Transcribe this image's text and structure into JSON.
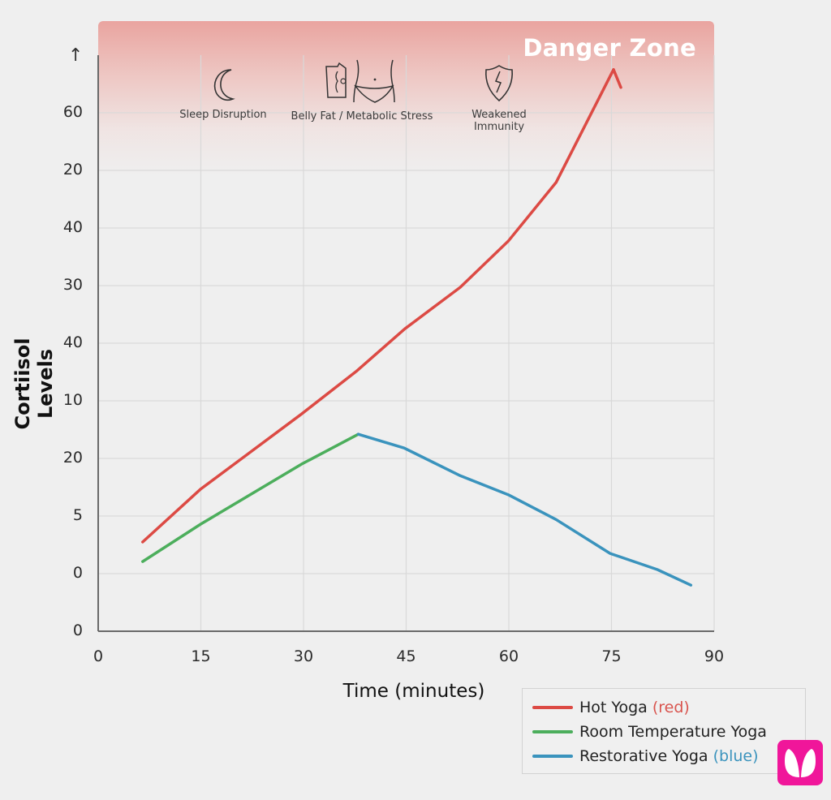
{
  "chart_data": {
    "type": "line",
    "title": "",
    "xlabel": "Time (minutes)",
    "ylabel": "Cortiisol Levels",
    "xlim": [
      0,
      90
    ],
    "x_ticks": [
      "0",
      "15",
      "30",
      "45",
      "60",
      "75",
      "90"
    ],
    "y_ticks_top_to_bottom": [
      "↑",
      "60",
      "20",
      "40",
      "30",
      "40",
      "10",
      "20",
      "5",
      "0",
      "0"
    ],
    "y_axis_note": "Y tick labels are non-monotonic as rendered; values below are expressed in grid-row units where 0 = bottom axis and 10 = top gridline (arrow)",
    "grid": true,
    "legend_position": "bottom-right",
    "series": [
      {
        "name": "Hot Yoga (red)",
        "color": "#dc4a44",
        "x": [
          6.5,
          15,
          21.8,
          29.7,
          37.7,
          44.8,
          52.9,
          59.9,
          66.9,
          75.3
        ],
        "y_grid_units": [
          1.55,
          2.47,
          3.07,
          3.77,
          4.51,
          5.25,
          5.97,
          6.77,
          7.79,
          9.75
        ],
        "arrow_tip": true
      },
      {
        "name": "Room Temperature Yoga",
        "color": "#4cae5c",
        "x": [
          6.5,
          15,
          29.7,
          38
        ],
        "y_grid_units": [
          1.21,
          1.86,
          2.9,
          3.42
        ]
      },
      {
        "name": "Restorative Yoga (blue)",
        "color": "#3a93bd",
        "x": [
          38,
          44.7,
          52.9,
          59.9,
          66.9,
          74.8,
          81.7,
          86.6
        ],
        "y_grid_units": [
          3.42,
          3.18,
          2.7,
          2.37,
          1.94,
          1.35,
          1.07,
          0.8
        ]
      }
    ],
    "annotations": [
      {
        "text": "Danger Zone",
        "position": "top-right band"
      },
      {
        "text": "Sleep Disruption",
        "icon": "moon-icon"
      },
      {
        "text": "Belly Fat / Metabolic Stress",
        "icon": "belly-icon"
      },
      {
        "text": "Weakened Immunity",
        "icon": "shield-bolt-icon"
      }
    ]
  },
  "labels": {
    "danger_zone": "Danger Zone",
    "y_arrow": "↑",
    "ylabel": "Cortiisol Levels",
    "xlabel": "Time (minutes)",
    "annot_sleep": "Sleep Disruption",
    "annot_belly": "Belly Fat / Metabolic Stress",
    "annot_immunity": "Weakened Immunity"
  },
  "legend": {
    "items": [
      {
        "label": "Hot Yoga ",
        "suffix": "(red)",
        "color": "#dc4a44",
        "suffix_color": "#d9544e"
      },
      {
        "label": "Room Temperature Yoga",
        "suffix": "",
        "color": "#4cae5c",
        "suffix_color": ""
      },
      {
        "label": "Restorative Yoga ",
        "suffix": "(blue)",
        "color": "#3a93bd",
        "suffix_color": "#3a93bd"
      }
    ]
  },
  "colors": {
    "grid": "#d9d9d9",
    "axis": "#6a6a6a",
    "logo": "#f0169a"
  }
}
